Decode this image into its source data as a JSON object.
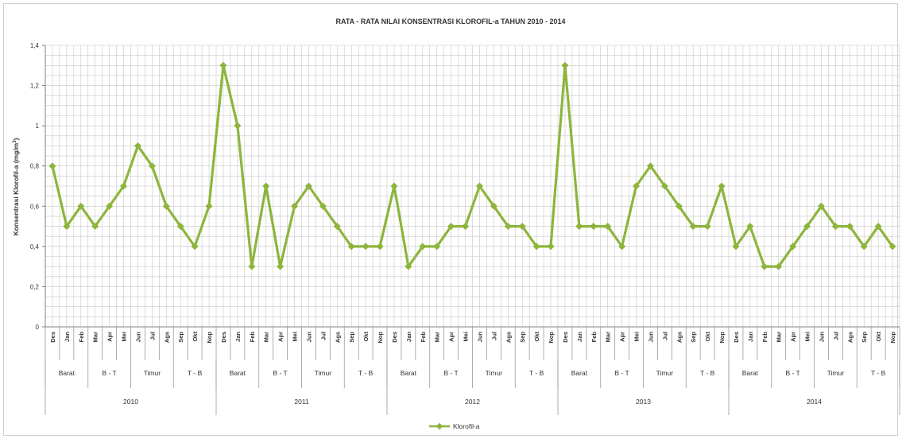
{
  "chart_data": {
    "type": "line",
    "title": "RATA - RATA NILAI KONSENTRASI KLOROFIL-a TAHUN 2010 - 2014",
    "ylabel": "Konsentrasi Klorofil-a  (mg/m",
    "ylabel_sup": "3",
    "ylabel_end": ")",
    "ylim": [
      0,
      1.4
    ],
    "yticks": [
      "0",
      "0,2",
      "0,4",
      "0,6",
      "0,8",
      "1",
      "1,2",
      "1,4"
    ],
    "grid": true,
    "legend": "bottom-center",
    "color": "#8db53c",
    "months": [
      "Des",
      "Jan",
      "Feb",
      "Mar",
      "Apr",
      "Mei",
      "Jun",
      "Jul",
      "Ags",
      "Sep",
      "Okt",
      "Nop"
    ],
    "seasons": [
      {
        "label": "Barat",
        "span": 3
      },
      {
        "label": "B - T",
        "span": 3
      },
      {
        "label": "Timur",
        "span": 3
      },
      {
        "label": "T - B",
        "span": 3
      }
    ],
    "years": [
      "2010",
      "2011",
      "2012",
      "2013",
      "2014"
    ],
    "series": [
      {
        "name": "Klorofil-a",
        "values": [
          0.8,
          0.5,
          0.6,
          0.5,
          0.6,
          0.7,
          0.9,
          0.8,
          0.6,
          0.5,
          0.4,
          0.6,
          1.3,
          1.0,
          0.3,
          0.7,
          0.3,
          0.6,
          0.7,
          0.6,
          0.5,
          0.4,
          0.4,
          0.4,
          0.7,
          0.3,
          0.4,
          0.4,
          0.5,
          0.5,
          0.7,
          0.6,
          0.5,
          0.5,
          0.4,
          0.4,
          1.3,
          0.5,
          0.5,
          0.5,
          0.4,
          0.7,
          0.8,
          0.7,
          0.6,
          0.5,
          0.5,
          0.7,
          0.4,
          0.5,
          0.3,
          0.3,
          0.4,
          0.5,
          0.6,
          0.5,
          0.5,
          0.4,
          0.5,
          0.4
        ]
      }
    ]
  }
}
